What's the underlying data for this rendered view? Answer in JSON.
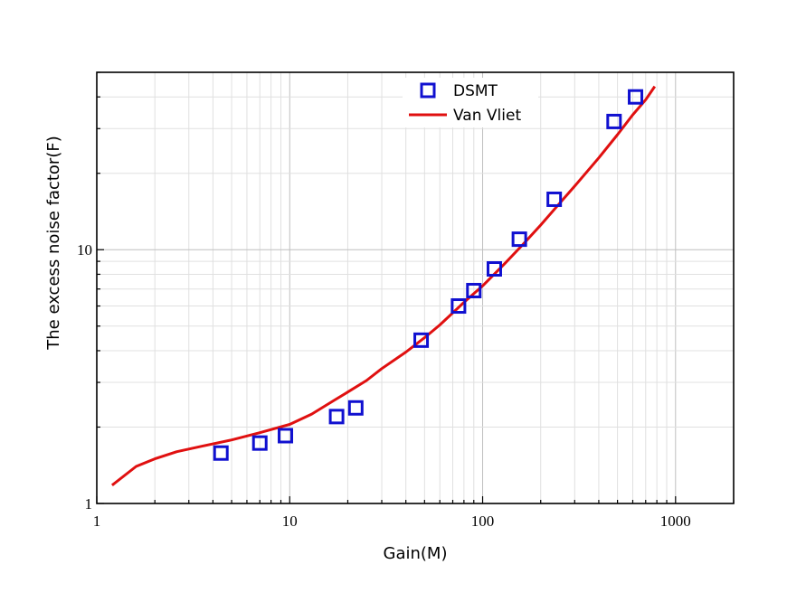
{
  "chart_data": {
    "type": "scatter",
    "x_scale": "log",
    "y_scale": "log",
    "xlabel": "Gain(M)",
    "ylabel": "The excess noise factor(F)",
    "xlim": [
      1,
      2000
    ],
    "ylim": [
      1,
      50
    ],
    "x_ticks": [
      {
        "value": 1,
        "label": "1"
      },
      {
        "value": 10,
        "label": "10"
      },
      {
        "value": 100,
        "label": "100"
      },
      {
        "value": 1000,
        "label": "1000"
      }
    ],
    "y_ticks": [
      {
        "value": 1,
        "label": "1"
      },
      {
        "value": 10,
        "label": "10"
      }
    ],
    "grid": true,
    "legend_position": "top",
    "series": [
      {
        "name": "DSMT",
        "kind": "markers",
        "marker": "open-square",
        "color": "#1010d0",
        "x": [
          4.4,
          7.0,
          9.5,
          17.5,
          22,
          48,
          75,
          90,
          115,
          155,
          235,
          480,
          620
        ],
        "y": [
          1.58,
          1.73,
          1.85,
          2.2,
          2.38,
          4.4,
          6.0,
          6.9,
          8.4,
          11.0,
          15.8,
          32,
          40
        ]
      },
      {
        "name": "Van Vliet",
        "kind": "line",
        "color": "#e01010",
        "x": [
          1.2,
          1.6,
          2,
          2.6,
          3.5,
          5,
          7,
          10,
          13,
          17,
          20,
          25,
          30,
          40,
          50,
          60,
          80,
          100,
          130,
          160,
          200,
          250,
          300,
          400,
          500,
          600,
          700,
          780
        ],
        "y": [
          1.18,
          1.4,
          1.5,
          1.6,
          1.68,
          1.78,
          1.9,
          2.05,
          2.25,
          2.55,
          2.75,
          3.05,
          3.4,
          3.95,
          4.5,
          5.05,
          6.2,
          7.2,
          8.8,
          10.4,
          12.5,
          15.2,
          17.8,
          23.0,
          28.4,
          34.0,
          39.0,
          44.0
        ]
      }
    ]
  }
}
